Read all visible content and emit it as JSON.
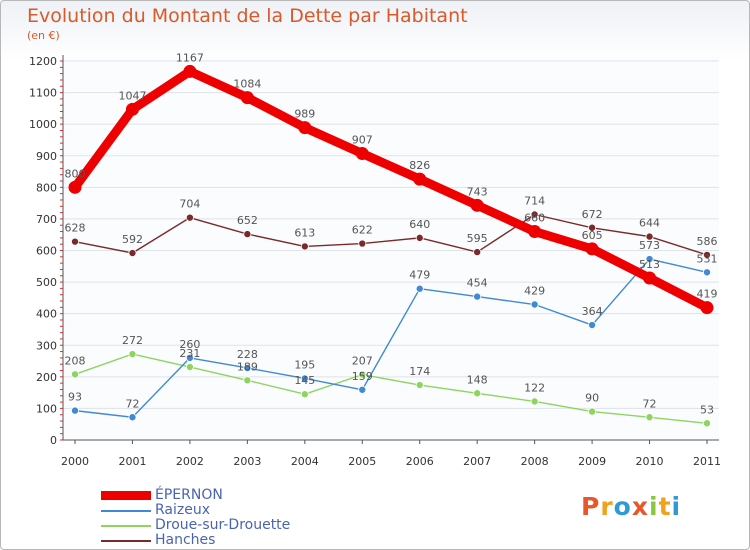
{
  "header": {
    "title": "Evolution du Montant de la Dette par Habitant",
    "subtitle": "(en €)"
  },
  "logo": {
    "text": "Proxiti",
    "colors": [
      "#e8562a",
      "#f0a21d",
      "#2e9ad6",
      "#e8562a",
      "#8cc63f",
      "#f0a21d",
      "#2e9ad6"
    ]
  },
  "chart_data": {
    "type": "line",
    "title": "Evolution du Montant de la Dette par Habitant",
    "subtitle": "(en €)",
    "x": [
      "2000",
      "2001",
      "2002",
      "2003",
      "2004",
      "2005",
      "2006",
      "2007",
      "2008",
      "2009",
      "2010",
      "2011"
    ],
    "ylim": [
      0,
      1200
    ],
    "yticks": [
      0,
      100,
      200,
      300,
      400,
      500,
      600,
      700,
      800,
      900,
      1000,
      1100,
      1200
    ],
    "grid": "horizontal",
    "legend_position": "bottom-left",
    "series": [
      {
        "name": "ÉPERNON",
        "color": "#ee0000",
        "values": [
          800,
          1047,
          1167,
          1084,
          989,
          907,
          826,
          743,
          660,
          605,
          513,
          419
        ],
        "labels": [
          "800",
          "1047",
          "1167",
          "1084",
          "989",
          "907",
          "826",
          "743",
          "660",
          "605",
          "513",
          "419"
        ]
      },
      {
        "name": "Raizeux",
        "color": "#3f8ad2",
        "values": [
          93,
          72,
          260,
          228,
          195,
          159,
          479,
          454,
          429,
          364,
          573,
          531
        ],
        "labels": [
          "93",
          "72",
          "260",
          "228",
          "195",
          "159",
          "479",
          "454",
          "429",
          "364",
          "573",
          "531"
        ]
      },
      {
        "name": "Droue-sur-Drouette",
        "color": "#8ed45f",
        "values": [
          208,
          272,
          231,
          189,
          145,
          207,
          174,
          148,
          122,
          90,
          72,
          53
        ],
        "labels": [
          "208",
          "272",
          "231",
          "189",
          "145",
          "207",
          "174",
          "148",
          "122",
          "90",
          "72",
          "53"
        ]
      },
      {
        "name": "Hanches",
        "color": "#7a2a2a",
        "values": [
          628,
          592,
          704,
          652,
          613,
          622,
          640,
          595,
          714,
          672,
          644,
          586
        ],
        "labels": [
          "628",
          "592",
          "704",
          "652",
          "613",
          "622",
          "640",
          "595",
          "714",
          "672",
          "644",
          "586"
        ]
      }
    ]
  }
}
